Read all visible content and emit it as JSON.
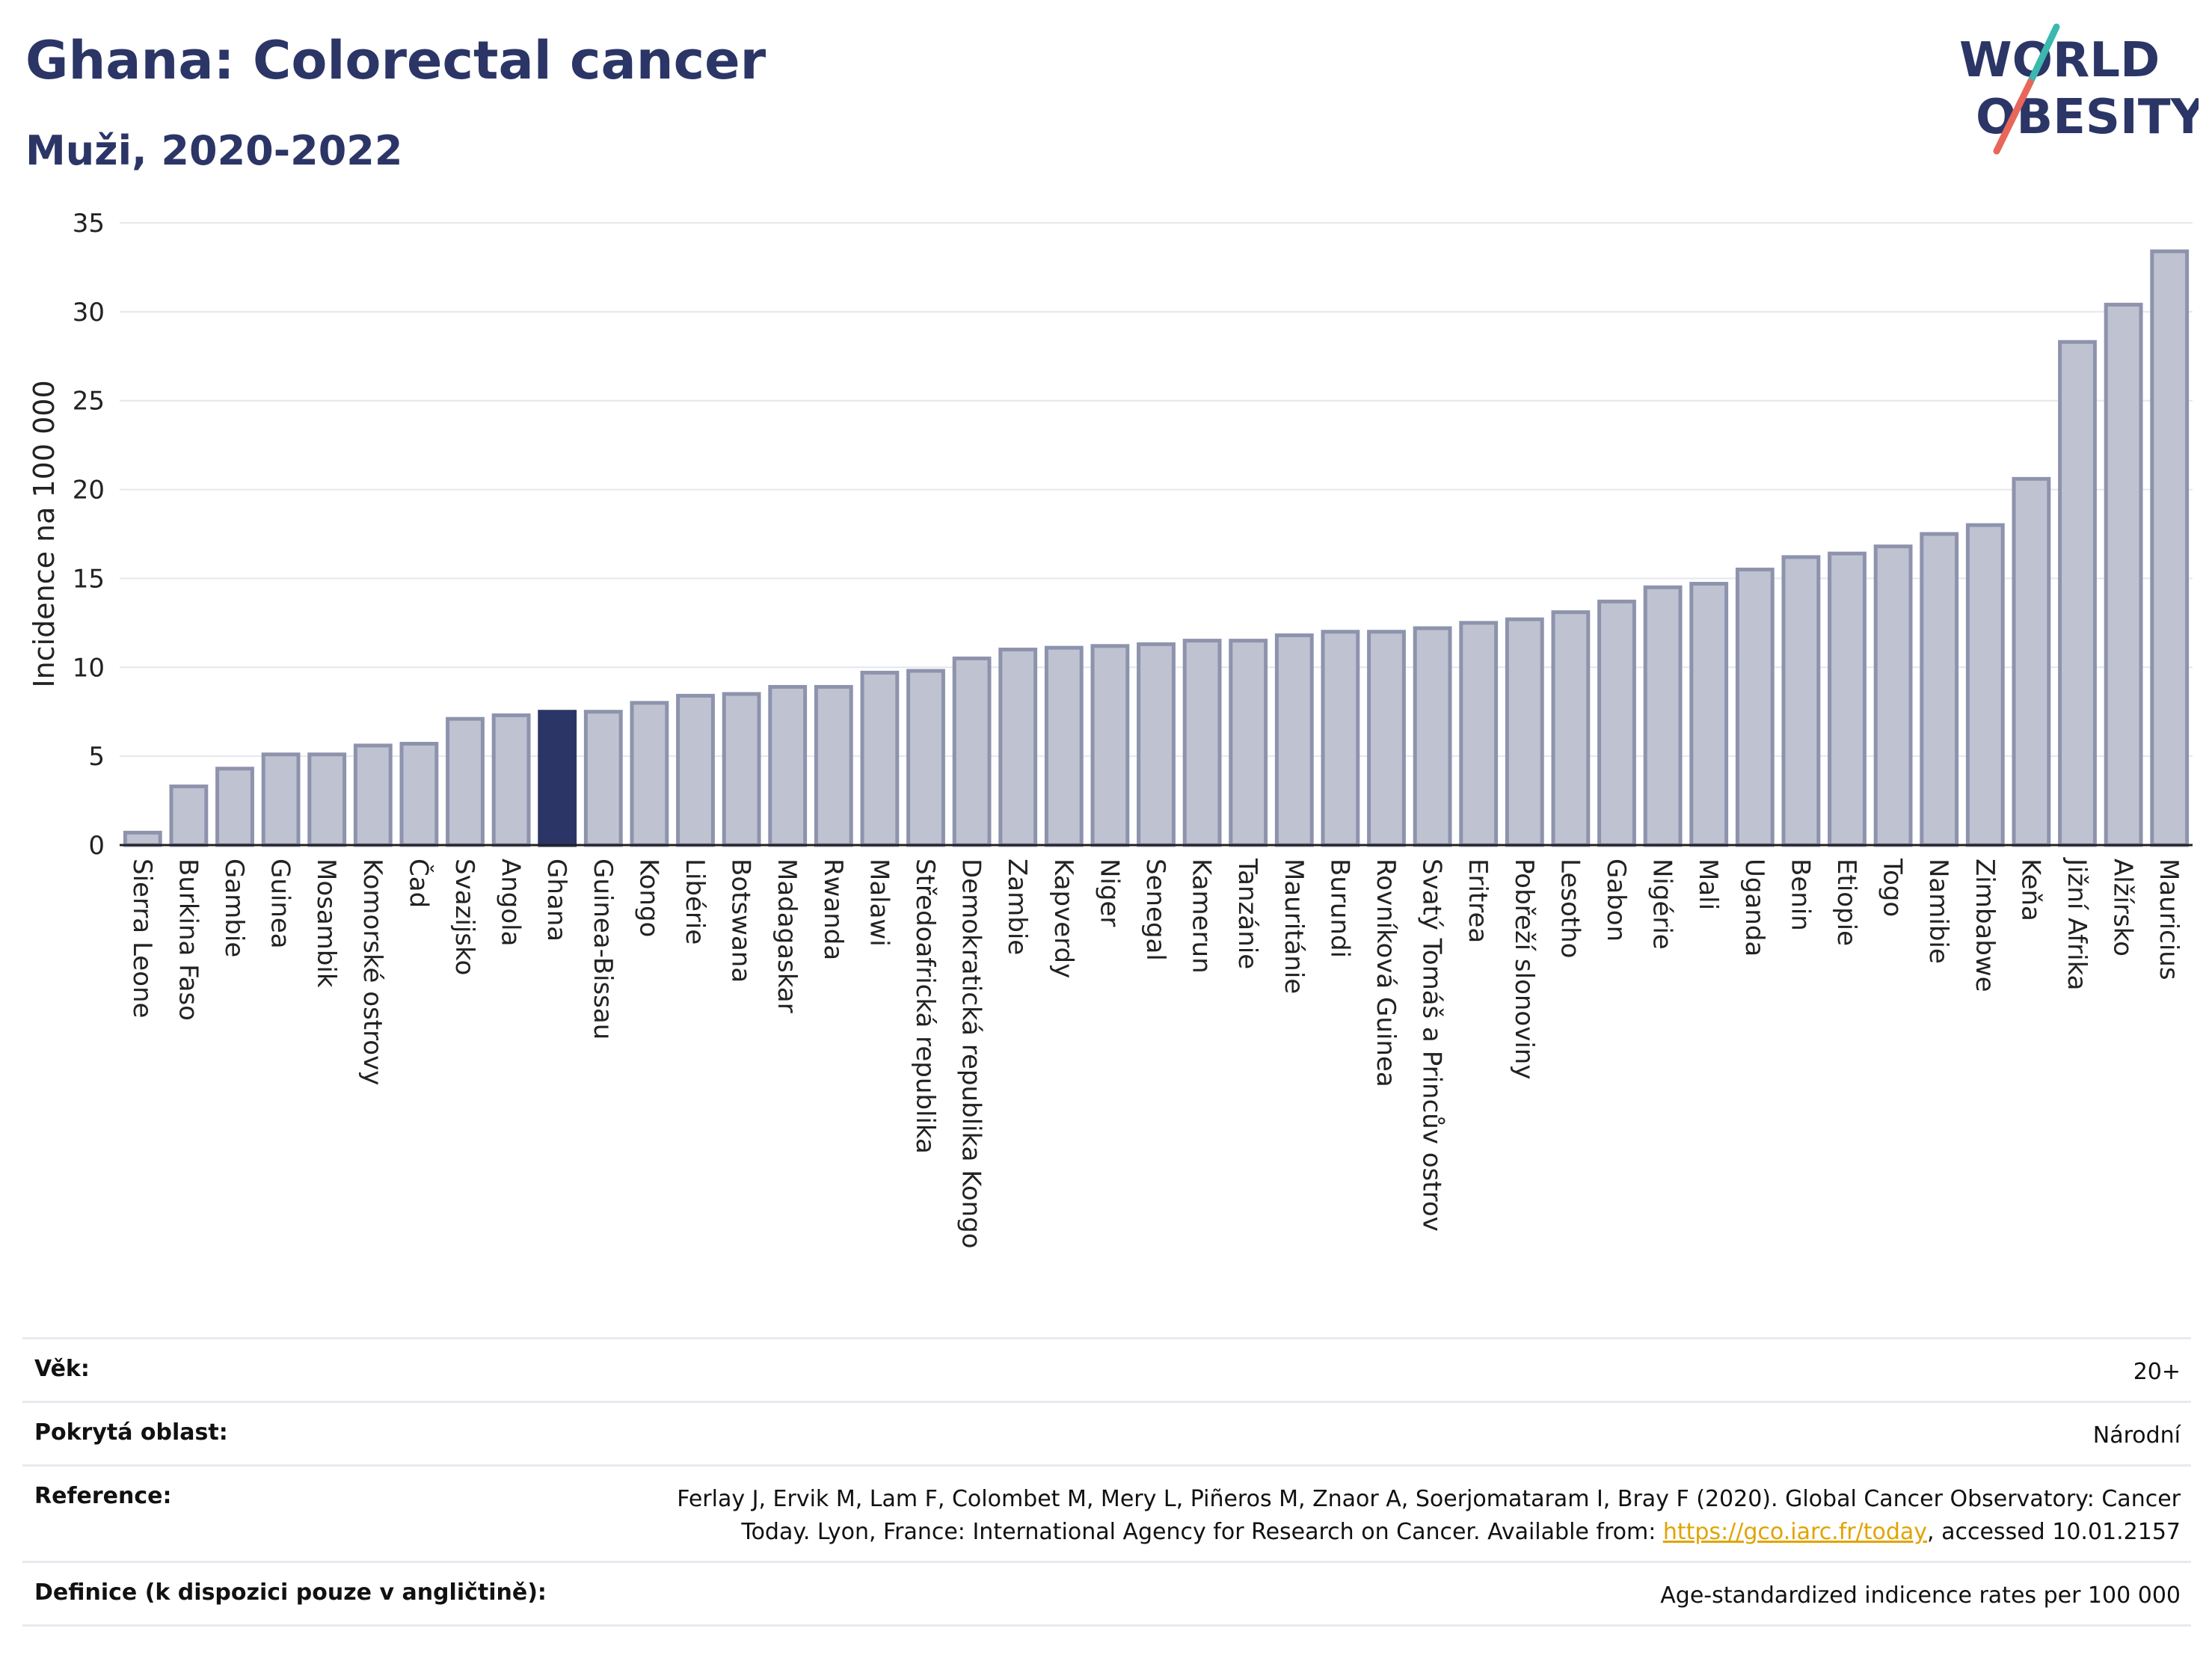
{
  "header": {
    "title": "Ghana: Colorectal cancer",
    "subtitle": "Muži, 2020-2022"
  },
  "logo": {
    "line1": "WORLD",
    "line2": "OBESITY"
  },
  "colors": {
    "bar": "#bfc2d0",
    "bar_border": "#8e93ad",
    "highlight": "#2b3566",
    "grid": "#e6e7ee",
    "text": "#2b3566"
  },
  "chart_data": {
    "type": "bar",
    "title": "Ghana: Colorectal cancer",
    "subtitle": "Muži, 2020-2022",
    "xlabel": "",
    "ylabel": "Incidence na 100 000",
    "ylim": [
      0,
      35
    ],
    "yticks": [
      0,
      5,
      10,
      15,
      20,
      25,
      30,
      35
    ],
    "grid": true,
    "highlight": "Ghana",
    "categories": [
      "Sierra Leone",
      "Burkina Faso",
      "Gambie",
      "Guinea",
      "Mosambik",
      "Komorské ostrovy",
      "Čad",
      "Svazijsko",
      "Angola",
      "Ghana",
      "Guinea-Bissau",
      "Kongo",
      "Libérie",
      "Botswana",
      "Madagaskar",
      "Rwanda",
      "Malawi",
      "Středoafrická republika",
      "Demokratická republika Kongo",
      "Zambie",
      "Kapverdy",
      "Niger",
      "Senegal",
      "Kamerun",
      "Tanzánie",
      "Mauritánie",
      "Burundi",
      "Rovníková Guinea",
      "Svatý Tomáš a Princův ostrov",
      "Eritrea",
      "Pobřeží slonoviny",
      "Lesotho",
      "Gabon",
      "Nigérie",
      "Mali",
      "Uganda",
      "Benin",
      "Etiopie",
      "Togo",
      "Namibie",
      "Zimbabwe",
      "Keňa",
      "Jižní Afrika",
      "Alžírsko",
      "Mauricius"
    ],
    "values": [
      0.7,
      3.3,
      4.3,
      5.1,
      5.1,
      5.6,
      5.7,
      7.1,
      7.3,
      7.5,
      7.5,
      8.0,
      8.4,
      8.5,
      8.9,
      8.9,
      9.7,
      9.8,
      10.5,
      11.0,
      11.1,
      11.2,
      11.3,
      11.5,
      11.5,
      11.8,
      12.0,
      12.0,
      12.2,
      12.5,
      12.7,
      13.1,
      13.7,
      14.5,
      14.7,
      15.5,
      16.2,
      16.4,
      16.8,
      17.5,
      18.0,
      20.6,
      28.3,
      30.4,
      33.4
    ]
  },
  "info": [
    {
      "label": "Věk:",
      "value": "20+"
    },
    {
      "label": "Pokrytá oblast:",
      "value": "Národní"
    },
    {
      "label": "Reference:",
      "value_line1": "Ferlay J, Ervik M, Lam F, Colombet M, Mery L, Piñeros M, Znaor A, Soerjomataram I, Bray F (2020). Global Cancer Observatory: Cancer",
      "value_line2_pre": "Today. Lyon, France: International Agency for Research on Cancer. Available from: ",
      "link": "https://gco.iarc.fr/today",
      "value_line2_post": ", accessed 10.01.2157"
    },
    {
      "label": "Definice (k dispozici pouze v angličtině):",
      "value": "Age-standardized indicence rates per 100 000"
    }
  ]
}
